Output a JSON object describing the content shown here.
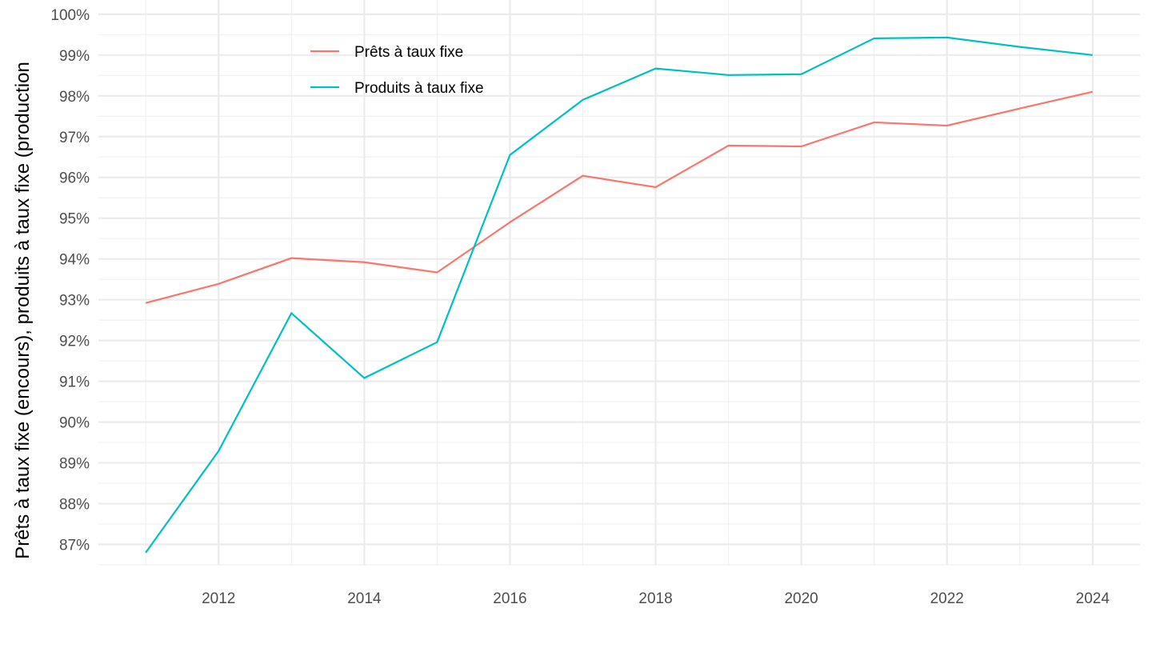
{
  "chart_data": {
    "type": "line",
    "title": "",
    "xlabel": "",
    "ylabel": "Prêts à taux fixe (encours), produits à taux fixe (production",
    "x": [
      2011,
      2012,
      2013,
      2014,
      2015,
      2016,
      2017,
      2018,
      2019,
      2020,
      2021,
      2022,
      2023,
      2024
    ],
    "xlim": [
      2010.35,
      2024.65
    ],
    "ylim": [
      86.5,
      100.35
    ],
    "x_ticks": [
      2012,
      2014,
      2016,
      2018,
      2020,
      2022,
      2024
    ],
    "x_tick_labels": [
      "2012",
      "2014",
      "2016",
      "2018",
      "2020",
      "2022",
      "2024"
    ],
    "y_ticks": [
      87,
      88,
      89,
      90,
      91,
      92,
      93,
      94,
      95,
      96,
      97,
      98,
      99,
      100
    ],
    "y_tick_labels": [
      "87%",
      "88%",
      "89%",
      "90%",
      "91%",
      "92%",
      "93%",
      "94%",
      "95%",
      "96%",
      "97%",
      "98%",
      "99%",
      "100%"
    ],
    "grid": true,
    "legend_position": "top-left-inside",
    "series": [
      {
        "name": "Prêts à taux fixe",
        "color": "#F8766D",
        "values": [
          92.92,
          93.39,
          94.02,
          93.92,
          93.67,
          94.9,
          96.04,
          95.76,
          96.78,
          96.76,
          97.35,
          97.27,
          97.69,
          98.1
        ]
      },
      {
        "name": "Produits à taux fixe",
        "color": "#00BFC4",
        "values": [
          86.8,
          89.29,
          92.67,
          91.08,
          91.96,
          96.55,
          97.9,
          98.67,
          98.51,
          98.53,
          99.41,
          99.43,
          99.2,
          99.0
        ]
      }
    ]
  }
}
